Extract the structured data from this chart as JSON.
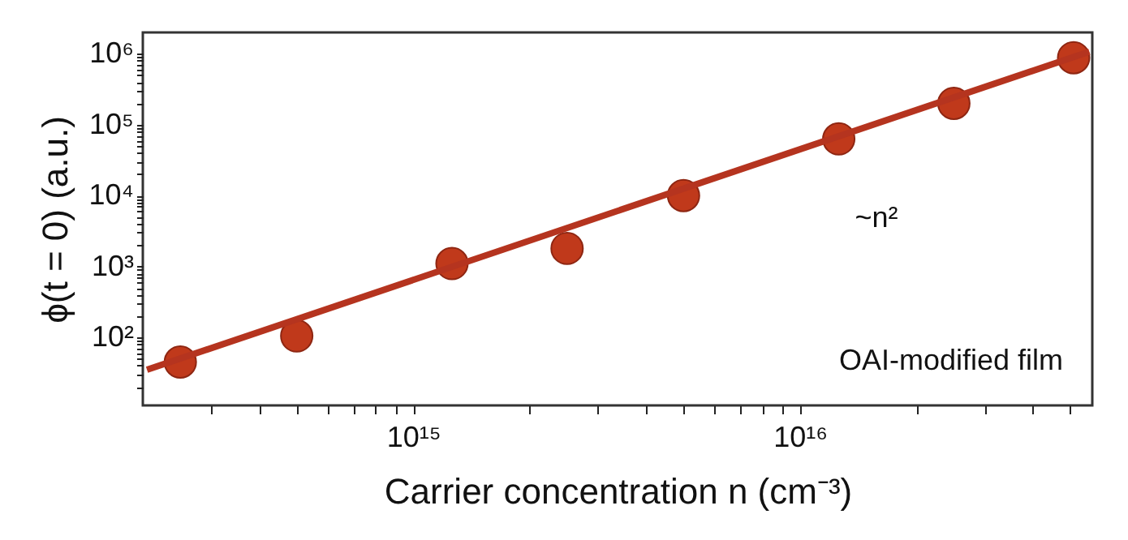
{
  "chart_data": {
    "type": "scatter",
    "xlabel": "Carrier concentration n (cm⁻³)",
    "ylabel": "ϕ(t = 0) (a.u.)",
    "log": "xy",
    "grid": false,
    "x": [
      250000000000000.0,
      500000000000000.0,
      1260000000000000.0,
      2500000000000000.0,
      5000000000000000.0,
      1.26e+16,
      2.5e+16,
      5.1e+16
    ],
    "series": [
      {
        "marker": "circle",
        "color": "#c0391b",
        "values": [
          45,
          105,
          1100,
          1800,
          10000,
          63000,
          200000,
          880000
        ]
      },
      {
        "type": "line",
        "color": "#b5341f",
        "line_style": "solid",
        "x": [
          205000000000000.0,
          5.6e+16
        ],
        "values": [
          35,
          1070000
        ]
      }
    ],
    "xlim": [
      200000000000000.0,
      5.7e+16
    ],
    "ylim": [
      11,
      2000000
    ],
    "xticks": [
      {
        "value": 300000000000000.0,
        "label": null
      },
      {
        "value": 400000000000000.0,
        "label": null
      },
      {
        "value": 500000000000000.0,
        "label": null
      },
      {
        "value": 600000000000000.0,
        "label": null
      },
      {
        "value": 700000000000000.0,
        "label": null
      },
      {
        "value": 800000000000000.0,
        "label": null
      },
      {
        "value": 900000000000000.0,
        "label": null
      },
      {
        "value": 1000000000000000.0,
        "label": "10¹⁵"
      },
      {
        "value": 2000000000000000.0,
        "label": null
      },
      {
        "value": 3000000000000000.0,
        "label": null
      },
      {
        "value": 4000000000000000.0,
        "label": null
      },
      {
        "value": 5000000000000000.0,
        "label": null
      },
      {
        "value": 6000000000000000.0,
        "label": null
      },
      {
        "value": 7000000000000000.0,
        "label": null
      },
      {
        "value": 8000000000000000.0,
        "label": null
      },
      {
        "value": 9000000000000000.0,
        "label": null
      },
      {
        "value": 1e+16,
        "label": "10¹⁶"
      },
      {
        "value": 2e+16,
        "label": null
      },
      {
        "value": 3e+16,
        "label": null
      },
      {
        "value": 4e+16,
        "label": null
      },
      {
        "value": 5e+16,
        "label": null
      }
    ],
    "yticks": [
      {
        "value": 20,
        "label": null
      },
      {
        "value": 30,
        "label": null
      },
      {
        "value": 40,
        "label": null
      },
      {
        "value": 50,
        "label": null
      },
      {
        "value": 60,
        "label": null
      },
      {
        "value": 70,
        "label": null
      },
      {
        "value": 80,
        "label": null
      },
      {
        "value": 90,
        "label": null
      },
      {
        "value": 100,
        "label": "10²"
      },
      {
        "value": 200,
        "label": null
      },
      {
        "value": 300,
        "label": null
      },
      {
        "value": 400,
        "label": null
      },
      {
        "value": 500,
        "label": null
      },
      {
        "value": 600,
        "label": null
      },
      {
        "value": 700,
        "label": null
      },
      {
        "value": 800,
        "label": null
      },
      {
        "value": 900,
        "label": null
      },
      {
        "value": 1000,
        "label": "10³"
      },
      {
        "value": 2000,
        "label": null
      },
      {
        "value": 3000,
        "label": null
      },
      {
        "value": 4000,
        "label": null
      },
      {
        "value": 5000,
        "label": null
      },
      {
        "value": 6000,
        "label": null
      },
      {
        "value": 7000,
        "label": null
      },
      {
        "value": 8000,
        "label": null
      },
      {
        "value": 9000,
        "label": null
      },
      {
        "value": 10000,
        "label": "10⁴"
      },
      {
        "value": 20000,
        "label": null
      },
      {
        "value": 30000,
        "label": null
      },
      {
        "value": 40000,
        "label": null
      },
      {
        "value": 50000,
        "label": null
      },
      {
        "value": 60000,
        "label": null
      },
      {
        "value": 70000,
        "label": null
      },
      {
        "value": 80000,
        "label": null
      },
      {
        "value": 90000,
        "label": null
      },
      {
        "value": 100000,
        "label": "10⁵"
      },
      {
        "value": 200000,
        "label": null
      },
      {
        "value": 300000,
        "label": null
      },
      {
        "value": 400000,
        "label": null
      },
      {
        "value": 500000,
        "label": null
      },
      {
        "value": 600000,
        "label": null
      },
      {
        "value": 700000,
        "label": null
      },
      {
        "value": 800000,
        "label": null
      },
      {
        "value": 900000,
        "label": null
      },
      {
        "value": 1000000,
        "label": "10⁶"
      }
    ],
    "annotations": [
      "~n²",
      "OAI-modified film"
    ]
  }
}
